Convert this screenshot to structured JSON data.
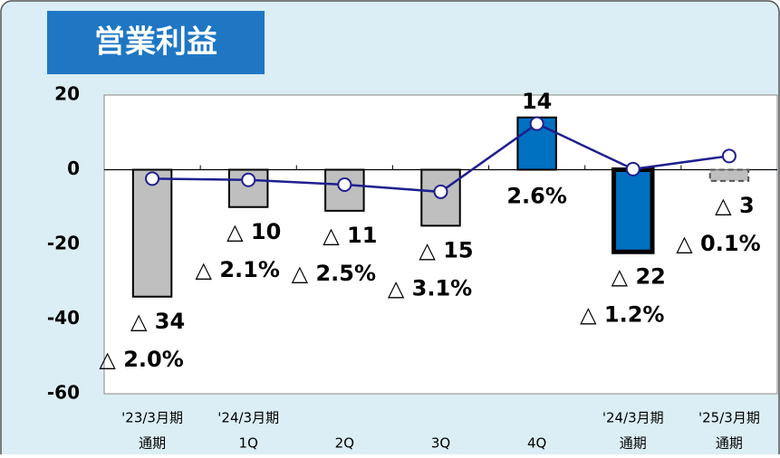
{
  "chart_data": {
    "type": "bar",
    "title": "営業利益",
    "categories": [
      [
        "'23/3月期",
        "通期"
      ],
      [
        "'24/3月期",
        "1Q"
      ],
      [
        "2Q"
      ],
      [
        "3Q"
      ],
      [
        "4Q"
      ],
      [
        "'24/3月期",
        "通期"
      ],
      [
        "'25/3月期",
        "通期"
      ]
    ],
    "series": [
      {
        "type": "bar",
        "values": [
          -34,
          -10,
          -11,
          -15,
          14,
          -22,
          -3
        ],
        "value_labels": [
          "△ 34",
          "△ 10",
          "△ 11",
          "△ 15",
          "14",
          "△ 22",
          "△ 3"
        ],
        "colors": [
          "#bfbfbf",
          "#bfbfbf",
          "#bfbfbf",
          "#bfbfbf",
          "#0070c0",
          "#0070c0",
          "#bfbfbf"
        ],
        "outlines": [
          "solid",
          "solid",
          "solid",
          "solid",
          "solid",
          "thick",
          "dashed"
        ]
      },
      {
        "type": "line",
        "axis": "y2",
        "color": "#1f1f8f",
        "values": [
          -2.0,
          -2.1,
          -2.5,
          -3.1,
          2.6,
          -1.2,
          -0.1
        ],
        "value_labels": [
          "△ 2.0%",
          "△ 2.1%",
          "△ 2.5%",
          "△ 3.1%",
          "2.6%",
          "△ 1.2%",
          "△ 0.1%"
        ]
      }
    ],
    "ylim": [
      -60,
      20
    ],
    "yticks": [
      -60,
      -40,
      -20,
      0,
      20
    ],
    "y2lim": [
      -20,
      5
    ]
  }
}
